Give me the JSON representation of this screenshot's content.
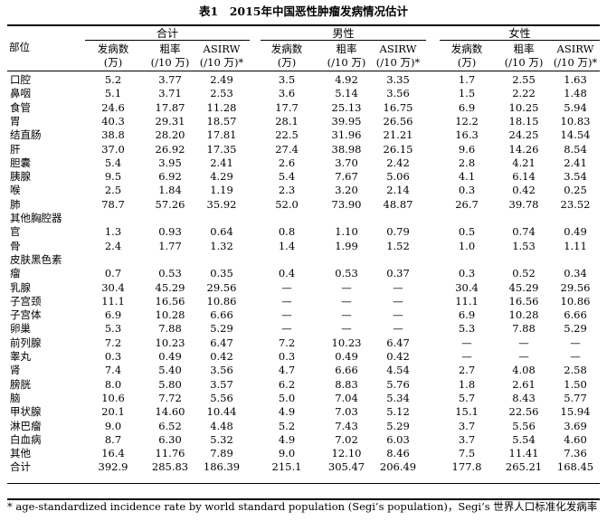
{
  "title": "表1　2015年中国恶性肿瘤发病情况估计",
  "header": {
    "site_label": "部位",
    "groups": [
      "合计",
      "男性",
      "女性"
    ],
    "subcols": [
      [
        "发病数",
        "(万)"
      ],
      [
        "粗率",
        "(/10 万)"
      ],
      [
        "ASIRW",
        "(/10 万)*"
      ]
    ]
  },
  "rows": [
    {
      "site": [
        "口腔"
      ],
      "vals": [
        "5.2",
        "3.77",
        "2.49",
        "3.5",
        "4.92",
        "3.35",
        "1.7",
        "2.55",
        "1.63"
      ]
    },
    {
      "site": [
        "鼻咽"
      ],
      "vals": [
        "5.1",
        "3.71",
        "2.53",
        "3.6",
        "5.14",
        "3.56",
        "1.5",
        "2.22",
        "1.48"
      ]
    },
    {
      "site": [
        "食管"
      ],
      "vals": [
        "24.6",
        "17.87",
        "11.28",
        "17.7",
        "25.13",
        "16.75",
        "6.9",
        "10.25",
        "5.94"
      ]
    },
    {
      "site": [
        "胃"
      ],
      "vals": [
        "40.3",
        "29.31",
        "18.57",
        "28.1",
        "39.95",
        "26.56",
        "12.2",
        "18.15",
        "10.83"
      ]
    },
    {
      "site": [
        "结直肠"
      ],
      "vals": [
        "38.8",
        "28.20",
        "17.81",
        "22.5",
        "31.96",
        "21.21",
        "16.3",
        "24.25",
        "14.54"
      ]
    },
    {
      "site": [
        "肝"
      ],
      "vals": [
        "37.0",
        "26.92",
        "17.35",
        "27.4",
        "38.98",
        "26.15",
        "9.6",
        "14.26",
        "8.54"
      ]
    },
    {
      "site": [
        "胆囊"
      ],
      "vals": [
        "5.4",
        "3.95",
        "2.41",
        "2.6",
        "3.70",
        "2.42",
        "2.8",
        "4.21",
        "2.41"
      ]
    },
    {
      "site": [
        "胰腺"
      ],
      "vals": [
        "9.5",
        "6.92",
        "4.29",
        "5.4",
        "7.67",
        "5.06",
        "4.1",
        "6.14",
        "3.54"
      ]
    },
    {
      "site": [
        "喉"
      ],
      "vals": [
        "2.5",
        "1.84",
        "1.19",
        "2.3",
        "3.20",
        "2.14",
        "0.3",
        "0.42",
        "0.25"
      ]
    },
    {
      "site": [
        "肺"
      ],
      "vals": [
        "78.7",
        "57.26",
        "35.92",
        "52.0",
        "73.90",
        "48.87",
        "26.7",
        "39.78",
        "23.52"
      ]
    },
    {
      "site": [
        "其他胸腔器",
        "官"
      ],
      "vals": [
        "1.3",
        "0.93",
        "0.64",
        "0.8",
        "1.10",
        "0.79",
        "0.5",
        "0.74",
        "0.49"
      ]
    },
    {
      "site": [
        "骨"
      ],
      "vals": [
        "2.4",
        "1.77",
        "1.32",
        "1.4",
        "1.99",
        "1.52",
        "1.0",
        "1.53",
        "1.11"
      ]
    },
    {
      "site": [
        "皮肤黑色素",
        "瘤"
      ],
      "vals": [
        "0.7",
        "0.53",
        "0.35",
        "0.4",
        "0.53",
        "0.37",
        "0.3",
        "0.52",
        "0.34"
      ]
    },
    {
      "site": [
        "乳腺"
      ],
      "vals": [
        "30.4",
        "45.29",
        "29.56",
        "—",
        "—",
        "—",
        "30.4",
        "45.29",
        "29.56"
      ]
    },
    {
      "site": [
        "子宫颈"
      ],
      "vals": [
        "11.1",
        "16.56",
        "10.86",
        "—",
        "—",
        "—",
        "11.1",
        "16.56",
        "10.86"
      ]
    },
    {
      "site": [
        "子宫体"
      ],
      "vals": [
        "6.9",
        "10.28",
        "6.66",
        "—",
        "—",
        "—",
        "6.9",
        "10.28",
        "6.66"
      ]
    },
    {
      "site": [
        "卵巢"
      ],
      "vals": [
        "5.3",
        "7.88",
        "5.29",
        "—",
        "—",
        "—",
        "5.3",
        "7.88",
        "5.29"
      ]
    },
    {
      "site": [
        "前列腺"
      ],
      "vals": [
        "7.2",
        "10.23",
        "6.47",
        "7.2",
        "10.23",
        "6.47",
        "—",
        "—",
        "—"
      ]
    },
    {
      "site": [
        "睾丸"
      ],
      "vals": [
        "0.3",
        "0.49",
        "0.42",
        "0.3",
        "0.49",
        "0.42",
        "—",
        "—",
        "—"
      ]
    },
    {
      "site": [
        "肾"
      ],
      "vals": [
        "7.4",
        "5.40",
        "3.56",
        "4.7",
        "6.66",
        "4.54",
        "2.7",
        "4.08",
        "2.58"
      ]
    },
    {
      "site": [
        "膀胱"
      ],
      "vals": [
        "8.0",
        "5.80",
        "3.57",
        "6.2",
        "8.83",
        "5.76",
        "1.8",
        "2.61",
        "1.50"
      ]
    },
    {
      "site": [
        "脑"
      ],
      "vals": [
        "10.6",
        "7.72",
        "5.56",
        "5.0",
        "7.04",
        "5.34",
        "5.7",
        "8.43",
        "5.77"
      ]
    },
    {
      "site": [
        "甲状腺"
      ],
      "vals": [
        "20.1",
        "14.60",
        "10.44",
        "4.9",
        "7.03",
        "5.12",
        "15.1",
        "22.56",
        "15.94"
      ]
    },
    {
      "site": [
        "淋巴瘤"
      ],
      "vals": [
        "9.0",
        "6.52",
        "4.48",
        "5.2",
        "7.43",
        "5.29",
        "3.7",
        "5.56",
        "3.69"
      ]
    },
    {
      "site": [
        "白血病"
      ],
      "vals": [
        "8.7",
        "6.30",
        "5.32",
        "4.9",
        "7.02",
        "6.03",
        "3.7",
        "5.54",
        "4.60"
      ]
    },
    {
      "site": [
        "其他"
      ],
      "vals": [
        "16.4",
        "11.76",
        "7.89",
        "9.0",
        "12.10",
        "8.46",
        "7.5",
        "11.41",
        "7.36"
      ]
    },
    {
      "site": [
        "合计"
      ],
      "vals": [
        "392.9",
        "285.83",
        "186.39",
        "215.1",
        "305.47",
        "206.49",
        "177.8",
        "265.21",
        "168.45"
      ]
    }
  ],
  "footnote": "* age-standardized incidence rate by world standard population (Segi’s population)，Segi’s 世界人口标准化发病率"
}
